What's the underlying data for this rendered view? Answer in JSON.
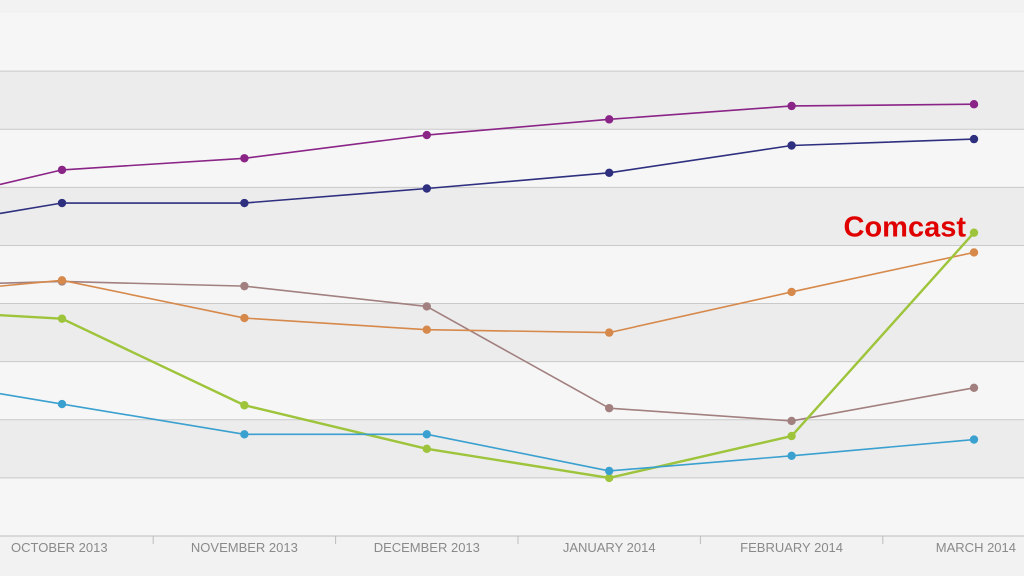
{
  "chart_data": {
    "type": "line",
    "title": "",
    "xlabel": "",
    "ylabel": "",
    "categories": [
      "OCTOBER 2013",
      "NOVEMBER 2013",
      "DECEMBER 2013",
      "JANUARY 2014",
      "FEBRUARY 2014",
      "MARCH 2014"
    ],
    "ylim": [
      0,
      9
    ],
    "grid": true,
    "series": [
      {
        "name": "purple",
        "color": "#8a2487",
        "start": 6.05,
        "values": [
          6.3,
          6.5,
          6.9,
          7.17,
          7.4,
          7.43
        ]
      },
      {
        "name": "navy",
        "color": "#2e2f7f",
        "start": 5.55,
        "values": [
          5.73,
          5.73,
          5.98,
          6.25,
          6.72,
          6.83
        ]
      },
      {
        "name": "brown",
        "color": "#a1807f",
        "start": 4.35,
        "values": [
          4.38,
          4.3,
          3.95,
          2.2,
          1.98,
          2.55
        ]
      },
      {
        "name": "orange",
        "color": "#d6894b",
        "start": 4.3,
        "values": [
          4.4,
          3.75,
          3.55,
          3.5,
          4.2,
          4.88
        ]
      },
      {
        "name": "green",
        "color": "#9dc43a",
        "start": 3.8,
        "values": [
          3.74,
          2.25,
          1.5,
          1.0,
          1.72,
          5.22
        ]
      },
      {
        "name": "blue",
        "color": "#3aa0cf",
        "start": 2.45,
        "values": [
          2.27,
          1.75,
          1.75,
          1.12,
          1.38,
          1.66
        ]
      }
    ],
    "annotations": [
      {
        "text": "Comcast",
        "series": "green"
      }
    ]
  }
}
